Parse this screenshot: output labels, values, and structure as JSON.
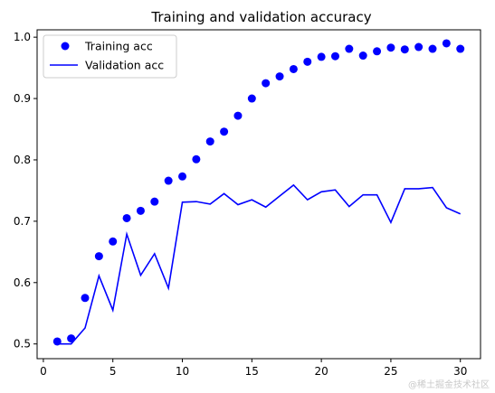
{
  "chart_data": {
    "type": "line",
    "title": "Training and validation accuracy",
    "xlabel": "",
    "ylabel": "",
    "xlim": [
      -0.45,
      31.45
    ],
    "ylim": [
      0.476,
      1.012
    ],
    "xticks": [
      0,
      5,
      10,
      15,
      20,
      25,
      30
    ],
    "yticks": [
      0.5,
      0.6,
      0.7,
      0.8,
      0.9,
      1.0
    ],
    "ytick_labels": [
      "0.5",
      "0.6",
      "0.7",
      "0.8",
      "0.9",
      "1.0"
    ],
    "x": [
      1,
      2,
      3,
      4,
      5,
      6,
      7,
      8,
      9,
      10,
      11,
      12,
      13,
      14,
      15,
      16,
      17,
      18,
      19,
      20,
      21,
      22,
      23,
      24,
      25,
      26,
      27,
      28,
      29,
      30
    ],
    "series": [
      {
        "name": "Training acc",
        "style": "markers",
        "color": "#0000ff",
        "values": [
          0.504,
          0.509,
          0.575,
          0.643,
          0.667,
          0.705,
          0.717,
          0.732,
          0.766,
          0.773,
          0.801,
          0.83,
          0.846,
          0.872,
          0.9,
          0.925,
          0.936,
          0.948,
          0.96,
          0.968,
          0.969,
          0.981,
          0.97,
          0.977,
          0.983,
          0.98,
          0.984,
          0.981,
          0.99,
          0.981
        ]
      },
      {
        "name": "Validation acc",
        "style": "line",
        "color": "#0000ff",
        "values": [
          0.5,
          0.5,
          0.526,
          0.611,
          0.555,
          0.679,
          0.612,
          0.647,
          0.591,
          0.731,
          0.732,
          0.728,
          0.745,
          0.727,
          0.735,
          0.723,
          0.741,
          0.759,
          0.735,
          0.748,
          0.751,
          0.724,
          0.743,
          0.743,
          0.698,
          0.753,
          0.753,
          0.755,
          0.722,
          0.712
        ]
      }
    ],
    "legend_position": "top-left",
    "grid": false
  },
  "watermark": "@稀土掘金技术社区"
}
